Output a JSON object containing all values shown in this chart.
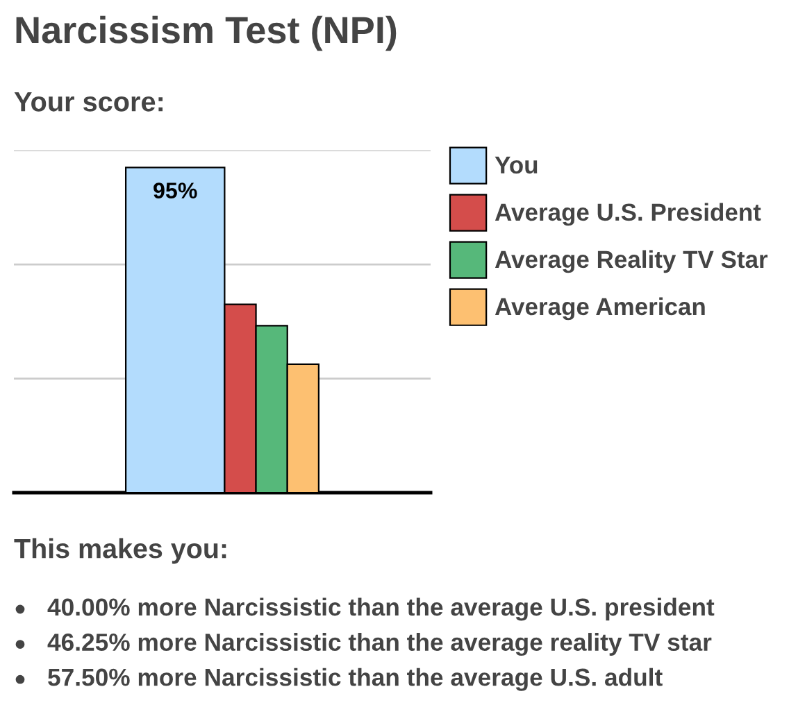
{
  "chart_data": {
    "type": "bar",
    "title": "Narcissism Test (NPI)",
    "subtitle": "Your score:",
    "categories": [
      null
    ],
    "series": [
      {
        "name": "You",
        "color": "#b3dcfd",
        "values": [
          95
        ],
        "value_labels": [
          "95%"
        ]
      },
      {
        "name": "Average U.S. President",
        "color": "#d44d4b",
        "values": [
          55
        ]
      },
      {
        "name": "Average Reality TV Star",
        "color": "#56b87a",
        "values": [
          48.75
        ]
      },
      {
        "name": "Average American",
        "color": "#fdc071",
        "values": [
          37.5
        ]
      }
    ],
    "ylim": [
      0,
      100
    ],
    "yticks": [
      {
        "value": 33.33,
        "label": null
      },
      {
        "value": 66.67,
        "label": null
      },
      {
        "value": 100,
        "label": null
      }
    ],
    "grid": "y",
    "tick_labels": false,
    "legend": "right",
    "annotations": [
      "This makes you:",
      "40.00% more Narcissistic than the average U.S. president",
      "46.25% more Narcissistic than the average reality TV star",
      "57.50% more Narcissistic than the average U.S. adult"
    ]
  }
}
